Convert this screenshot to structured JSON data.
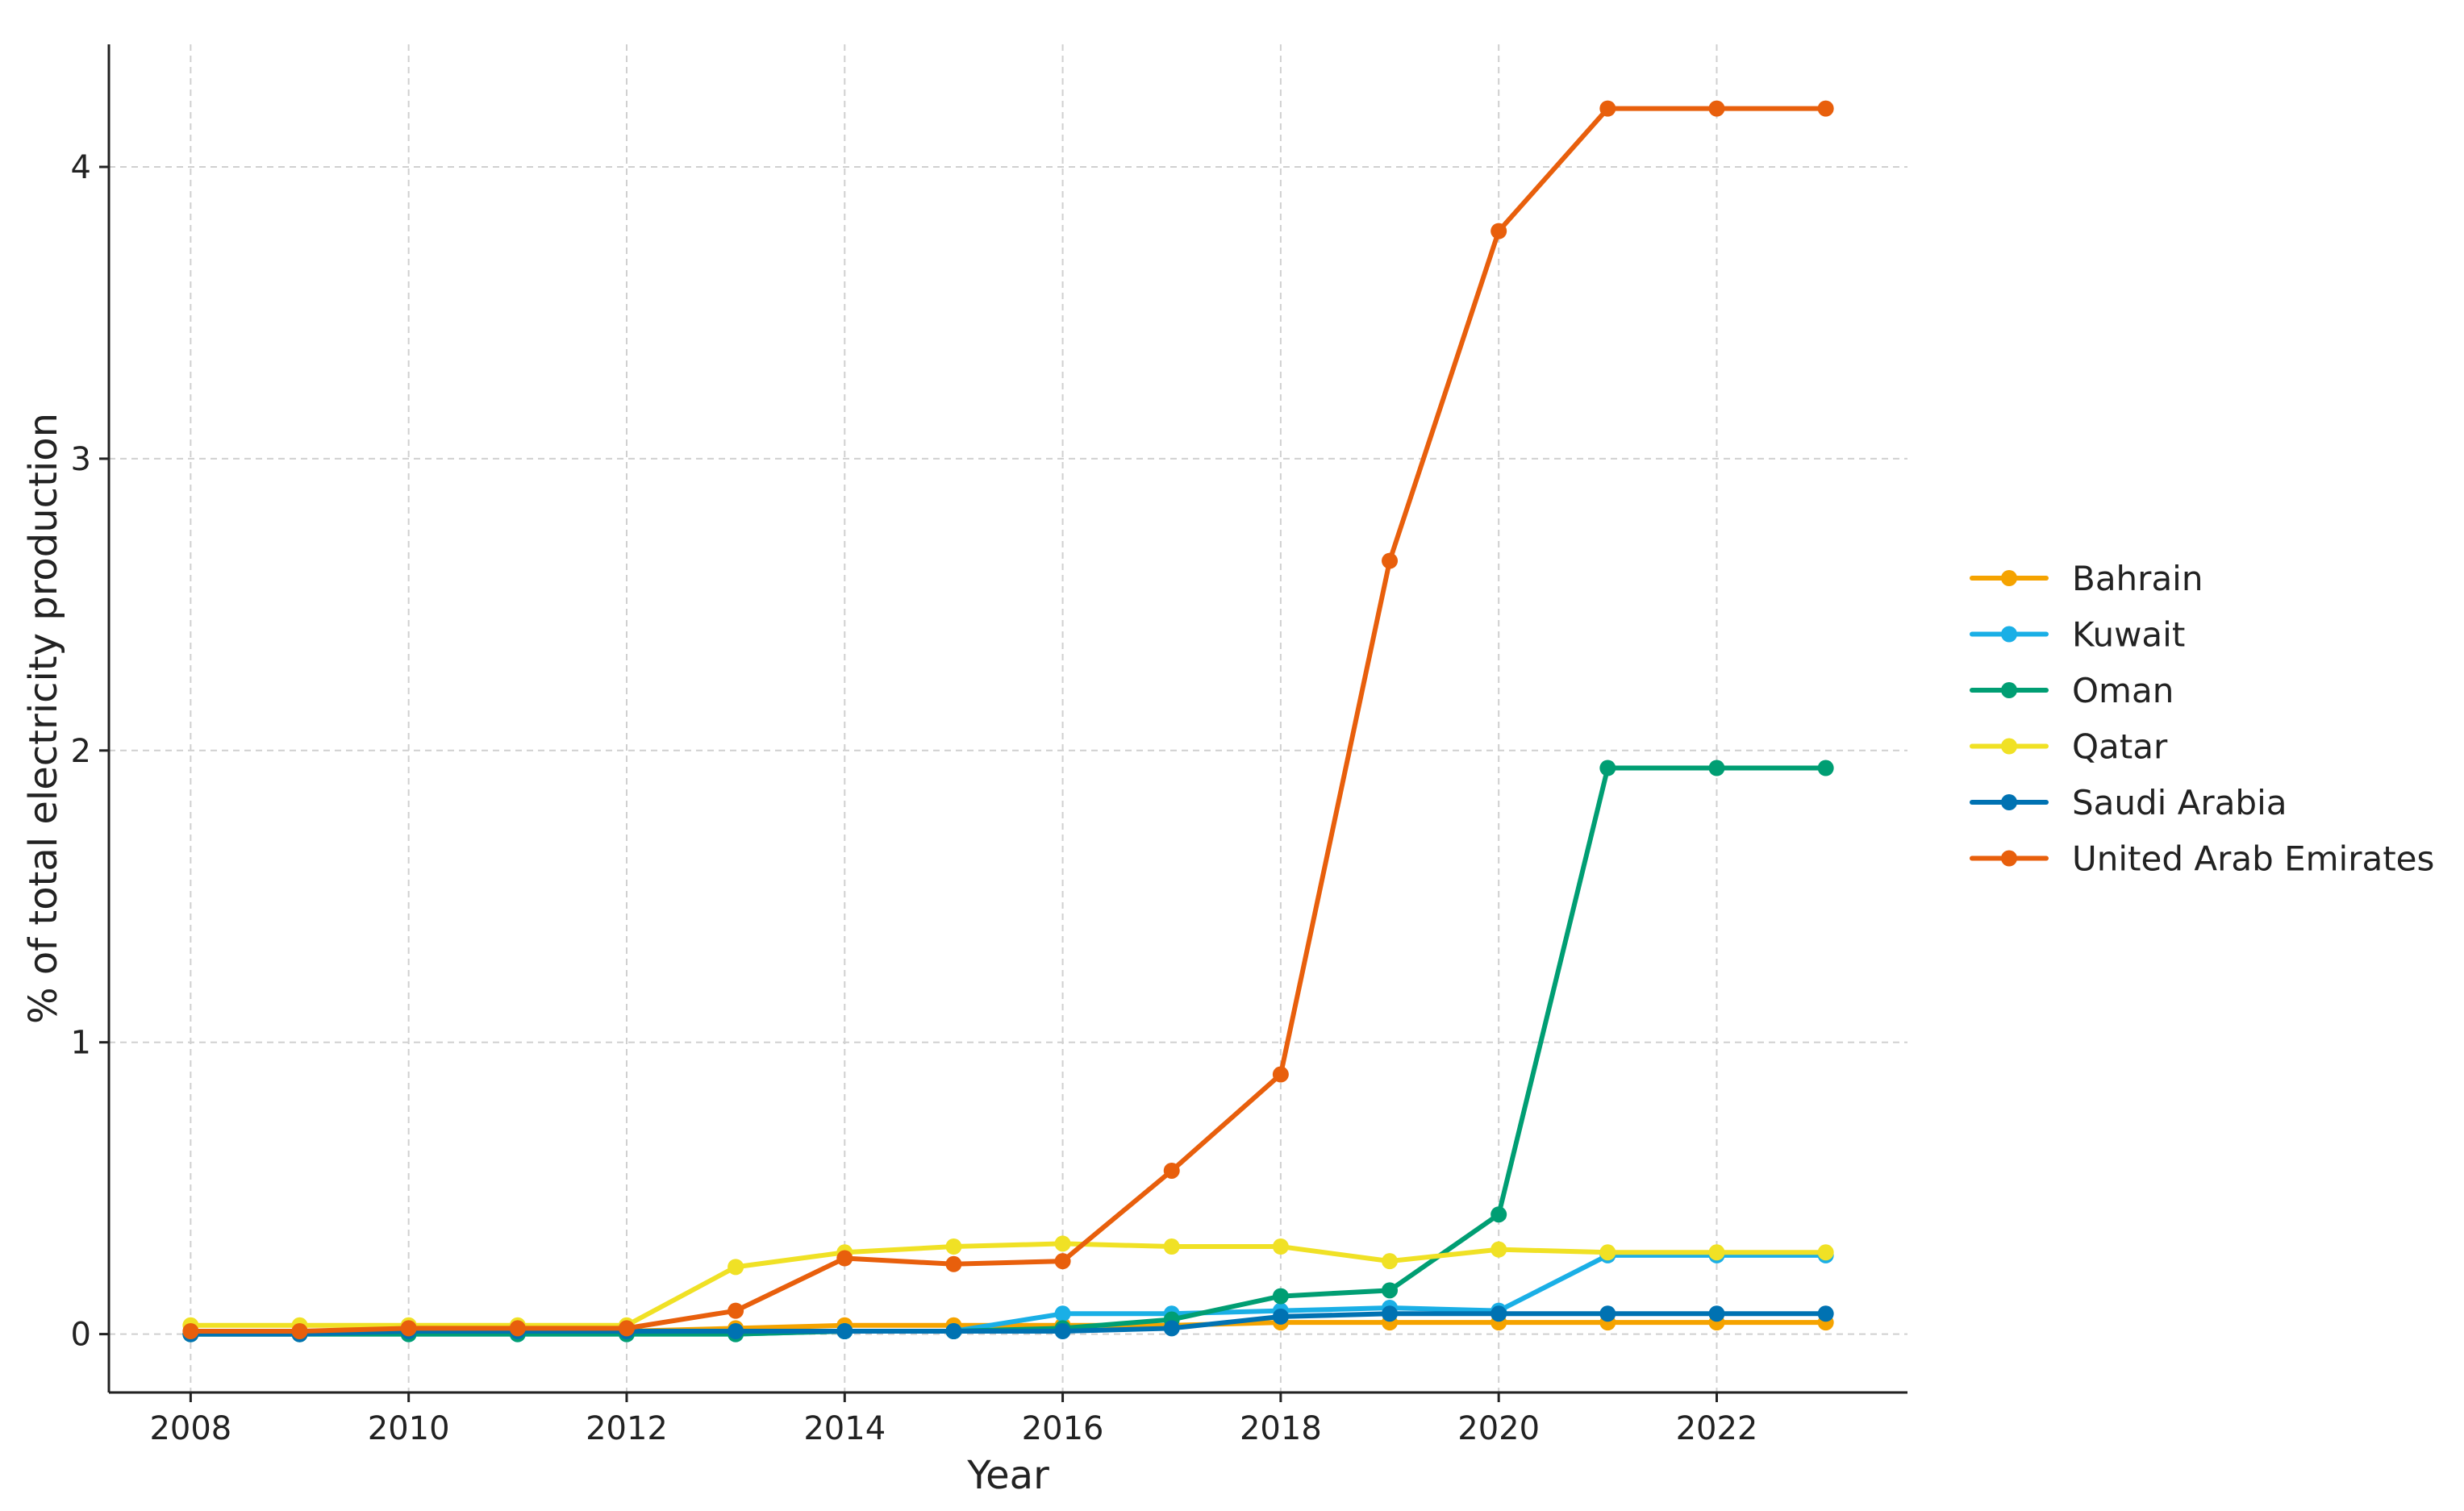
{
  "chart_data": {
    "type": "line",
    "title": "",
    "xlabel": "Year",
    "ylabel": "% of total electricity production",
    "x": [
      2008,
      2009,
      2010,
      2011,
      2012,
      2013,
      2014,
      2015,
      2016,
      2017,
      2018,
      2019,
      2020,
      2021,
      2022,
      2023
    ],
    "xlim": [
      2007.25,
      2023.75
    ],
    "ylim": [
      -0.2,
      4.42
    ],
    "xticks": [
      2008,
      2010,
      2012,
      2014,
      2016,
      2018,
      2020,
      2022
    ],
    "yticks": [
      0,
      1,
      2,
      3,
      4
    ],
    "xtick_labels": [
      "2008",
      "2010",
      "2012",
      "2014",
      "2016",
      "2018",
      "2020",
      "2022"
    ],
    "ytick_labels": [
      "0",
      "1",
      "2",
      "3",
      "4"
    ],
    "grid": true,
    "legend_position": "center-right",
    "series": [
      {
        "name": "Bahrain",
        "color": "#F5A300",
        "values": [
          0.0,
          0.0,
          0.01,
          0.01,
          0.01,
          0.02,
          0.03,
          0.03,
          0.03,
          0.03,
          0.04,
          0.04,
          0.04,
          0.04,
          0.04,
          0.04
        ]
      },
      {
        "name": "Kuwait",
        "color": "#1AAFE6",
        "values": [
          0.0,
          0.0,
          0.0,
          0.0,
          0.0,
          0.0,
          0.01,
          0.01,
          0.07,
          0.07,
          0.08,
          0.09,
          0.08,
          0.27,
          0.27,
          0.27
        ]
      },
      {
        "name": "Oman",
        "color": "#009E73",
        "values": [
          0.0,
          0.0,
          0.0,
          0.0,
          0.0,
          0.0,
          0.01,
          0.01,
          0.02,
          0.05,
          0.13,
          0.15,
          0.41,
          1.94,
          1.94,
          1.94
        ]
      },
      {
        "name": "Qatar",
        "color": "#F0E125",
        "values": [
          0.03,
          0.03,
          0.03,
          0.03,
          0.03,
          0.23,
          0.28,
          0.3,
          0.31,
          0.3,
          0.3,
          0.25,
          0.29,
          0.28,
          0.28,
          0.28
        ]
      },
      {
        "name": "Saudi Arabia",
        "color": "#0072B2",
        "values": [
          0.0,
          0.0,
          0.01,
          0.01,
          0.01,
          0.01,
          0.01,
          0.01,
          0.01,
          0.02,
          0.06,
          0.07,
          0.07,
          0.07,
          0.07,
          0.07
        ]
      },
      {
        "name": "United Arab Emirates",
        "color": "#E85F0C",
        "values": [
          0.01,
          0.01,
          0.02,
          0.02,
          0.02,
          0.08,
          0.26,
          0.24,
          0.25,
          0.56,
          0.89,
          2.65,
          3.78,
          4.2,
          4.2,
          4.2
        ]
      }
    ]
  }
}
